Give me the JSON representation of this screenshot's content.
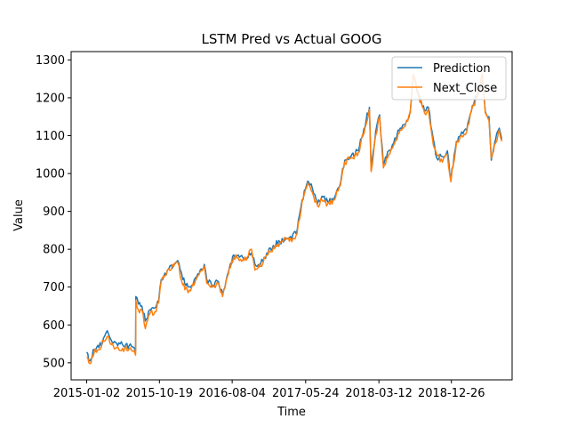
{
  "chart_data": {
    "type": "line",
    "title": "LSTM Pred vs Actual GOOG",
    "xlabel": "Time",
    "ylabel": "Value",
    "x_tick_labels": [
      "2015-01-02",
      "2015-10-19",
      "2016-08-04",
      "2017-05-24",
      "2018-03-12",
      "2018-12-26"
    ],
    "y_ticks": [
      500,
      600,
      700,
      800,
      900,
      1000,
      1100,
      1200,
      1300
    ],
    "xlim": [
      "2014-11-01",
      "2019-08-25"
    ],
    "ylim": [
      455,
      1322
    ],
    "grid": false,
    "legend": "upper-right",
    "series": [
      {
        "name": "Prediction",
        "color": "#1f77b4",
        "points": [
          [
            "2015-01-02",
            528
          ],
          [
            "2015-01-15",
            505
          ],
          [
            "2015-02-01",
            535
          ],
          [
            "2015-02-20",
            540
          ],
          [
            "2015-03-10",
            565
          ],
          [
            "2015-03-25",
            585
          ],
          [
            "2015-04-10",
            560
          ],
          [
            "2015-05-01",
            552
          ],
          [
            "2015-05-25",
            548
          ],
          [
            "2015-06-20",
            545
          ],
          [
            "2015-07-10",
            540
          ],
          [
            "2015-07-16",
            530
          ],
          [
            "2015-07-17",
            675
          ],
          [
            "2015-07-27",
            655
          ],
          [
            "2015-08-10",
            650
          ],
          [
            "2015-08-24",
            610
          ],
          [
            "2015-09-10",
            640
          ],
          [
            "2015-10-01",
            645
          ],
          [
            "2015-10-16",
            665
          ],
          [
            "2015-10-26",
            720
          ],
          [
            "2015-11-20",
            745
          ],
          [
            "2015-12-15",
            760
          ],
          [
            "2015-12-31",
            770
          ],
          [
            "2016-01-20",
            720
          ],
          [
            "2016-02-10",
            700
          ],
          [
            "2016-02-25",
            705
          ],
          [
            "2016-03-20",
            735
          ],
          [
            "2016-04-15",
            760
          ],
          [
            "2016-04-25",
            720
          ],
          [
            "2016-05-20",
            705
          ],
          [
            "2016-06-10",
            715
          ],
          [
            "2016-06-27",
            680
          ],
          [
            "2016-07-20",
            740
          ],
          [
            "2016-08-10",
            785
          ],
          [
            "2016-09-20",
            775
          ],
          [
            "2016-10-20",
            790
          ],
          [
            "2016-11-03",
            760
          ],
          [
            "2016-11-25",
            760
          ],
          [
            "2016-12-20",
            790
          ],
          [
            "2017-01-15",
            810
          ],
          [
            "2017-02-10",
            820
          ],
          [
            "2017-03-05",
            830
          ],
          [
            "2017-03-30",
            828
          ],
          [
            "2017-04-20",
            850
          ],
          [
            "2017-05-10",
            930
          ],
          [
            "2017-06-01",
            980
          ],
          [
            "2017-06-20",
            960
          ],
          [
            "2017-07-10",
            920
          ],
          [
            "2017-07-28",
            940
          ],
          [
            "2017-08-20",
            925
          ],
          [
            "2017-09-15",
            935
          ],
          [
            "2017-10-10",
            975
          ],
          [
            "2017-10-27",
            1035
          ],
          [
            "2017-11-20",
            1045
          ],
          [
            "2017-12-20",
            1060
          ],
          [
            "2018-01-20",
            1140
          ],
          [
            "2018-02-02",
            1175
          ],
          [
            "2018-02-09",
            1010
          ],
          [
            "2018-02-27",
            1110
          ],
          [
            "2018-03-15",
            1155
          ],
          [
            "2018-03-30",
            1020
          ],
          [
            "2018-04-20",
            1060
          ],
          [
            "2018-05-10",
            1080
          ],
          [
            "2018-06-05",
            1120
          ],
          [
            "2018-06-25",
            1130
          ],
          [
            "2018-07-15",
            1165
          ],
          [
            "2018-07-27",
            1255
          ],
          [
            "2018-08-15",
            1215
          ],
          [
            "2018-09-10",
            1165
          ],
          [
            "2018-09-25",
            1175
          ],
          [
            "2018-10-15",
            1090
          ],
          [
            "2018-10-29",
            1040
          ],
          [
            "2018-11-20",
            1045
          ],
          [
            "2018-12-10",
            1060
          ],
          [
            "2018-12-24",
            985
          ],
          [
            "2019-01-15",
            1085
          ],
          [
            "2019-02-05",
            1110
          ],
          [
            "2019-02-25",
            1115
          ],
          [
            "2019-03-20",
            1180
          ],
          [
            "2019-04-10",
            1210
          ],
          [
            "2019-04-29",
            1245
          ],
          [
            "2019-05-10",
            1165
          ],
          [
            "2019-05-25",
            1150
          ],
          [
            "2019-06-03",
            1035
          ],
          [
            "2019-06-20",
            1090
          ],
          [
            "2019-07-05",
            1120
          ],
          [
            "2019-07-15",
            1090
          ]
        ]
      },
      {
        "name": "Next_Close",
        "color": "#ff7f0e",
        "points": [
          [
            "2015-01-02",
            515
          ],
          [
            "2015-01-15",
            498
          ],
          [
            "2015-02-01",
            528
          ],
          [
            "2015-02-20",
            535
          ],
          [
            "2015-03-10",
            557
          ],
          [
            "2015-03-25",
            570
          ],
          [
            "2015-04-10",
            548
          ],
          [
            "2015-05-01",
            540
          ],
          [
            "2015-05-25",
            538
          ],
          [
            "2015-06-20",
            536
          ],
          [
            "2015-07-10",
            532
          ],
          [
            "2015-07-16",
            520
          ],
          [
            "2015-07-17",
            665
          ],
          [
            "2015-07-27",
            640
          ],
          [
            "2015-08-10",
            640
          ],
          [
            "2015-08-24",
            590
          ],
          [
            "2015-09-10",
            628
          ],
          [
            "2015-10-01",
            635
          ],
          [
            "2015-10-16",
            658
          ],
          [
            "2015-10-26",
            715
          ],
          [
            "2015-11-20",
            745
          ],
          [
            "2015-12-15",
            755
          ],
          [
            "2015-12-31",
            765
          ],
          [
            "2016-01-20",
            705
          ],
          [
            "2016-02-10",
            685
          ],
          [
            "2016-02-25",
            700
          ],
          [
            "2016-03-20",
            730
          ],
          [
            "2016-04-15",
            755
          ],
          [
            "2016-04-25",
            710
          ],
          [
            "2016-05-20",
            700
          ],
          [
            "2016-06-10",
            710
          ],
          [
            "2016-06-27",
            675
          ],
          [
            "2016-07-20",
            735
          ],
          [
            "2016-08-10",
            780
          ],
          [
            "2016-09-20",
            770
          ],
          [
            "2016-10-20",
            800
          ],
          [
            "2016-11-03",
            745
          ],
          [
            "2016-11-25",
            755
          ],
          [
            "2016-12-20",
            785
          ],
          [
            "2017-01-15",
            805
          ],
          [
            "2017-02-10",
            815
          ],
          [
            "2017-03-05",
            825
          ],
          [
            "2017-03-30",
            820
          ],
          [
            "2017-04-20",
            842
          ],
          [
            "2017-05-10",
            925
          ],
          [
            "2017-06-01",
            975
          ],
          [
            "2017-06-20",
            950
          ],
          [
            "2017-07-10",
            915
          ],
          [
            "2017-07-28",
            930
          ],
          [
            "2017-08-20",
            920
          ],
          [
            "2017-09-15",
            930
          ],
          [
            "2017-10-10",
            970
          ],
          [
            "2017-10-27",
            1030
          ],
          [
            "2017-11-20",
            1040
          ],
          [
            "2017-12-20",
            1055
          ],
          [
            "2018-01-20",
            1130
          ],
          [
            "2018-02-02",
            1170
          ],
          [
            "2018-02-09",
            1005
          ],
          [
            "2018-02-27",
            1100
          ],
          [
            "2018-03-15",
            1150
          ],
          [
            "2018-03-30",
            1015
          ],
          [
            "2018-04-20",
            1050
          ],
          [
            "2018-05-10",
            1075
          ],
          [
            "2018-06-05",
            1115
          ],
          [
            "2018-06-25",
            1125
          ],
          [
            "2018-07-15",
            1160
          ],
          [
            "2018-07-27",
            1262
          ],
          [
            "2018-08-15",
            1210
          ],
          [
            "2018-09-10",
            1160
          ],
          [
            "2018-09-25",
            1170
          ],
          [
            "2018-10-15",
            1075
          ],
          [
            "2018-10-29",
            1050
          ],
          [
            "2018-11-20",
            1030
          ],
          [
            "2018-12-10",
            1050
          ],
          [
            "2018-12-24",
            978
          ],
          [
            "2019-01-15",
            1080
          ],
          [
            "2019-02-05",
            1100
          ],
          [
            "2019-02-25",
            1110
          ],
          [
            "2019-03-20",
            1175
          ],
          [
            "2019-04-10",
            1205
          ],
          [
            "2019-04-29",
            1265
          ],
          [
            "2019-05-10",
            1160
          ],
          [
            "2019-05-25",
            1140
          ],
          [
            "2019-06-03",
            1040
          ],
          [
            "2019-06-20",
            1080
          ],
          [
            "2019-07-05",
            1115
          ],
          [
            "2019-07-15",
            1085
          ]
        ]
      }
    ]
  }
}
